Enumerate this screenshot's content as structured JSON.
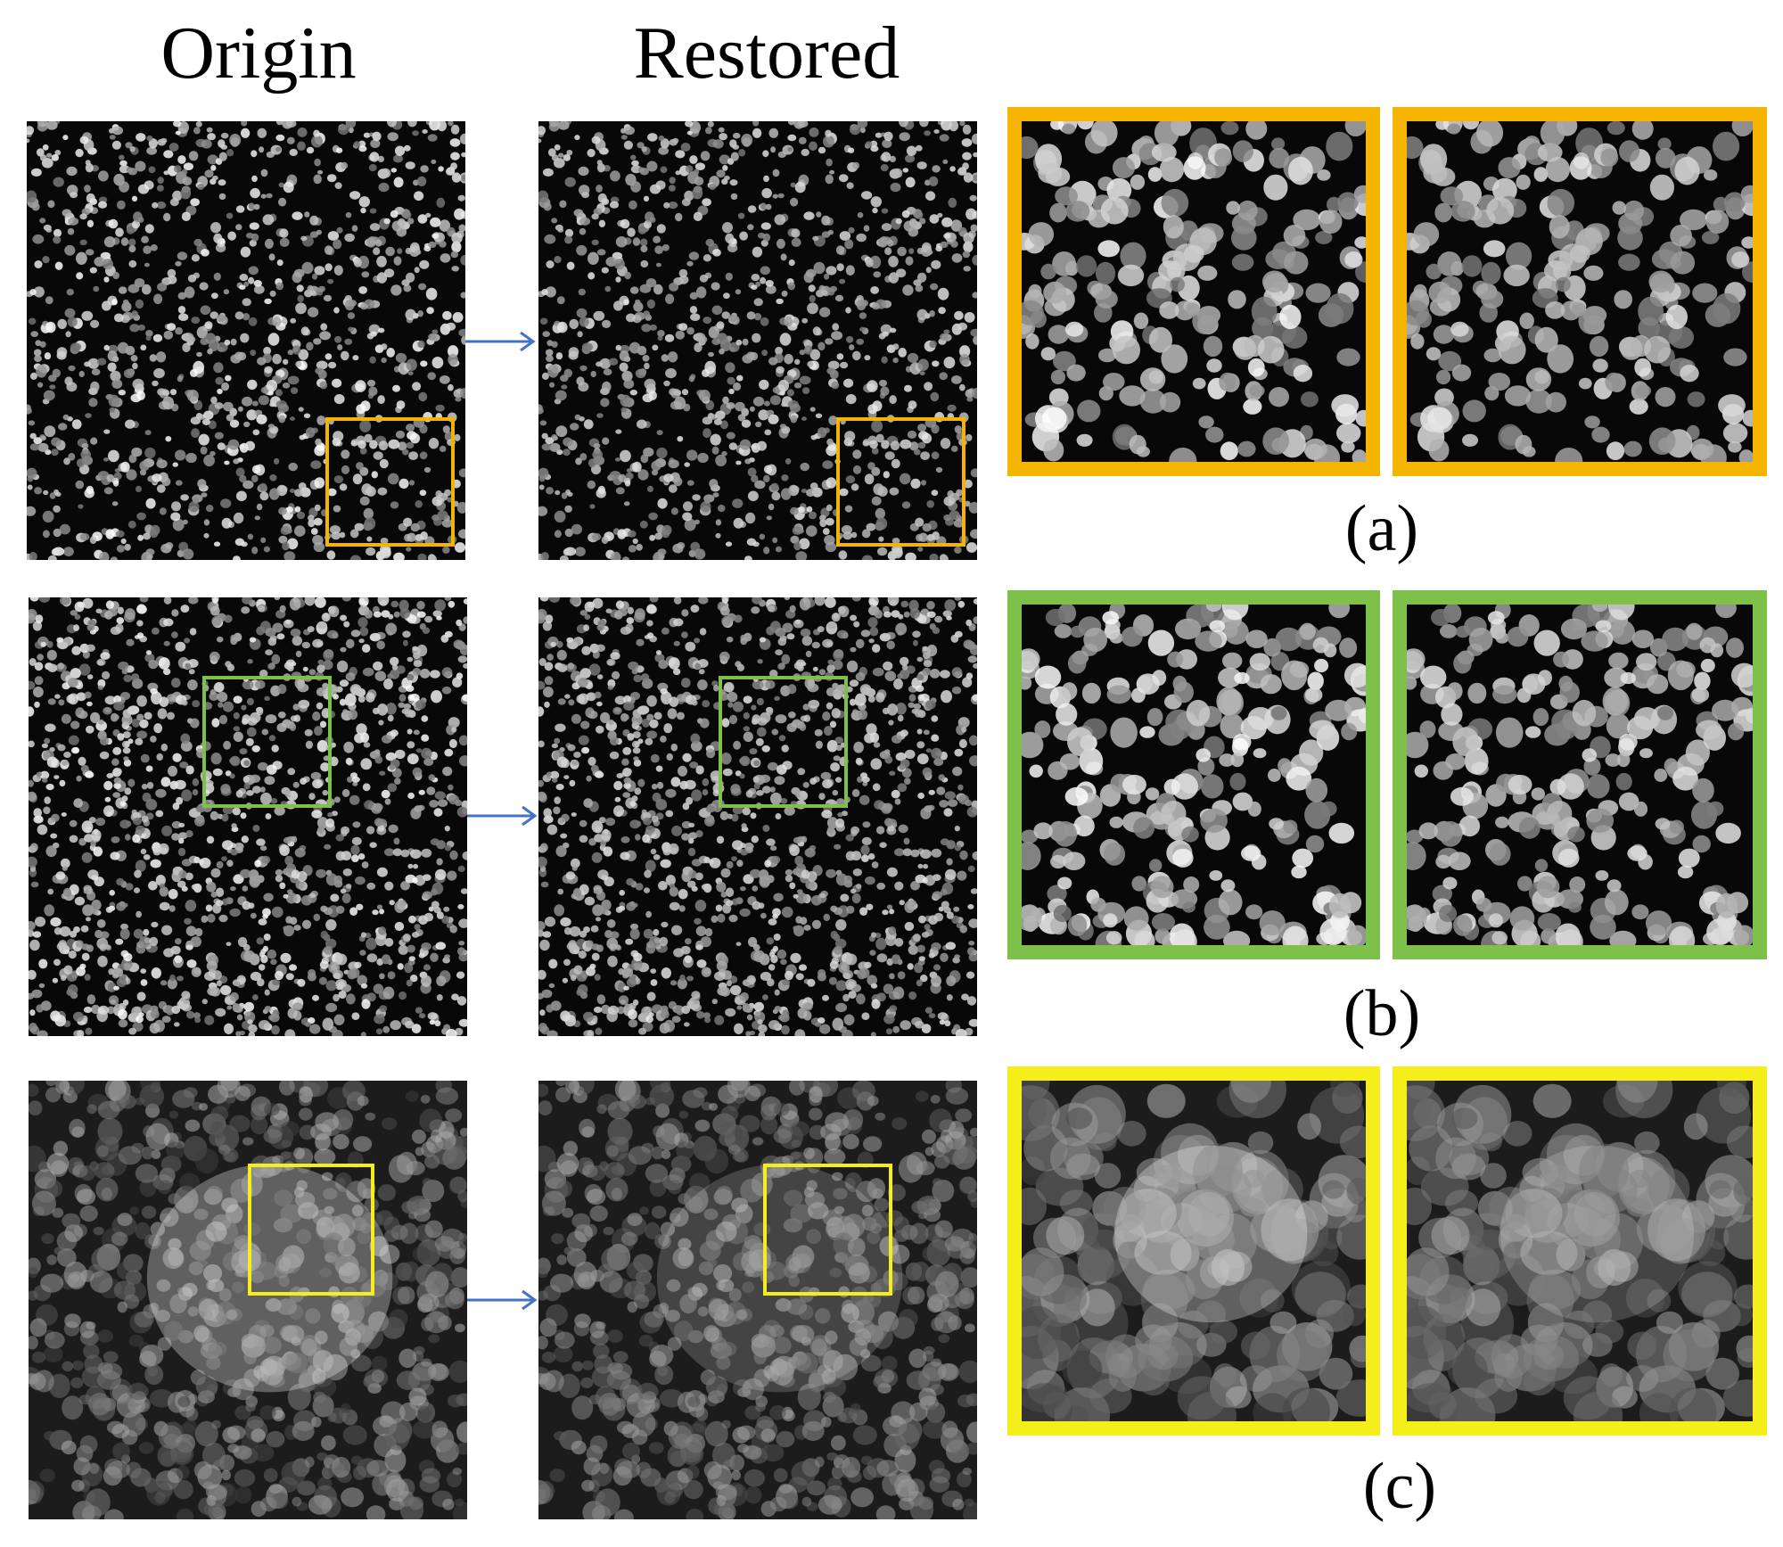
{
  "headers": {
    "origin": "Origin",
    "restored": "Restored"
  },
  "rows": [
    {
      "label": "(a)",
      "box_color": "#F5B400",
      "texture": "nuclei-sparse"
    },
    {
      "label": "(b)",
      "box_color": "#7DC04A",
      "texture": "nuclei-dense"
    },
    {
      "label": "(c)",
      "box_color": "#F4EF1A",
      "texture": "cytoplasm"
    }
  ],
  "arrow_color": "#4472C4"
}
